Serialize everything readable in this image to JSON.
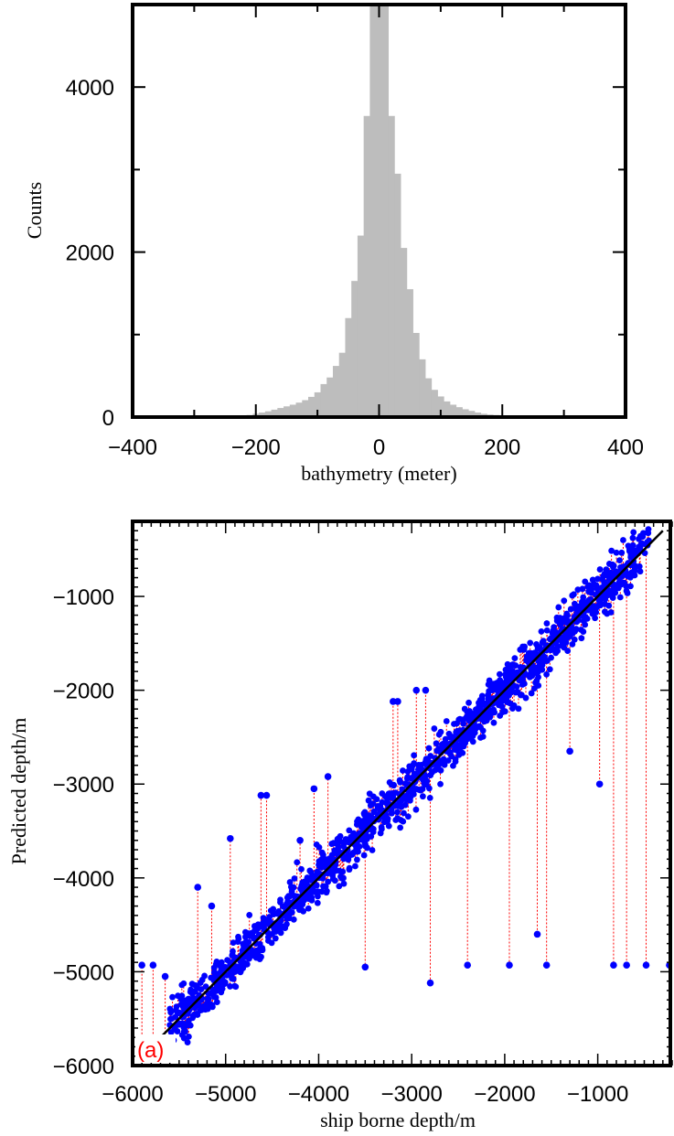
{
  "chart_data": [
    {
      "type": "bar",
      "subtype": "histogram",
      "xlabel": "bathymetry (meter)",
      "ylabel": "Counts",
      "xlim": [
        -400,
        400
      ],
      "ylim": [
        0,
        5000
      ],
      "xticks": [
        -400,
        -200,
        0,
        200,
        400
      ],
      "xtick_labels": [
        "−400",
        "−200",
        "0",
        "200",
        "400"
      ],
      "yticks": [
        0,
        2000,
        4000
      ],
      "ytick_labels": [
        "0",
        "2000",
        "4000"
      ],
      "bar_color": "#bdbdbd",
      "bin_width": 10,
      "bins": [
        {
          "x": -230,
          "value": 10
        },
        {
          "x": -220,
          "value": 15
        },
        {
          "x": -210,
          "value": 25
        },
        {
          "x": -200,
          "value": 40
        },
        {
          "x": -190,
          "value": 55
        },
        {
          "x": -180,
          "value": 70
        },
        {
          "x": -170,
          "value": 90
        },
        {
          "x": -160,
          "value": 110
        },
        {
          "x": -150,
          "value": 130
        },
        {
          "x": -140,
          "value": 150
        },
        {
          "x": -130,
          "value": 175
        },
        {
          "x": -120,
          "value": 205
        },
        {
          "x": -110,
          "value": 245
        },
        {
          "x": -100,
          "value": 300
        },
        {
          "x": -90,
          "value": 400
        },
        {
          "x": -80,
          "value": 480
        },
        {
          "x": -70,
          "value": 620
        },
        {
          "x": -60,
          "value": 780
        },
        {
          "x": -50,
          "value": 1200
        },
        {
          "x": -40,
          "value": 1650
        },
        {
          "x": -30,
          "value": 2200
        },
        {
          "x": -20,
          "value": 3650
        },
        {
          "x": -10,
          "value": 5000
        },
        {
          "x": 0,
          "value": 5000
        },
        {
          "x": 10,
          "value": 5000
        },
        {
          "x": 20,
          "value": 3650
        },
        {
          "x": 30,
          "value": 2950
        },
        {
          "x": 40,
          "value": 2050
        },
        {
          "x": 50,
          "value": 1550
        },
        {
          "x": 60,
          "value": 1020
        },
        {
          "x": 70,
          "value": 700
        },
        {
          "x": 80,
          "value": 470
        },
        {
          "x": 90,
          "value": 330
        },
        {
          "x": 100,
          "value": 250
        },
        {
          "x": 110,
          "value": 190
        },
        {
          "x": 120,
          "value": 150
        },
        {
          "x": 130,
          "value": 120
        },
        {
          "x": 140,
          "value": 95
        },
        {
          "x": 150,
          "value": 75
        },
        {
          "x": 160,
          "value": 55
        },
        {
          "x": 170,
          "value": 40
        },
        {
          "x": 180,
          "value": 30
        },
        {
          "x": 190,
          "value": 25
        },
        {
          "x": 200,
          "value": 20
        },
        {
          "x": 210,
          "value": 15
        },
        {
          "x": 220,
          "value": 12
        },
        {
          "x": 230,
          "value": 10
        },
        {
          "x": 240,
          "value": 8
        },
        {
          "x": 250,
          "value": 6
        },
        {
          "x": 260,
          "value": 5
        }
      ]
    },
    {
      "type": "scatter",
      "panel_label": "(a)",
      "xlabel": "ship borne depth/m",
      "ylabel": "Predicted depth/m",
      "xlim": [
        -6000,
        -200
      ],
      "ylim": [
        -6000,
        -200
      ],
      "xticks": [
        -6000,
        -5000,
        -4000,
        -3000,
        -2000,
        -1000
      ],
      "xtick_labels": [
        "−6000",
        "−5000",
        "−4000",
        "−3000",
        "−2000",
        "−1000"
      ],
      "yticks": [
        -6000,
        -5000,
        -4000,
        -3000,
        -2000,
        -1000
      ],
      "ytick_labels": [
        "−6000",
        "−5000",
        "−4000",
        "−3000",
        "−2000",
        "−1000"
      ],
      "point_color": "#0000ff",
      "residual_color": "#ff0000",
      "reference_line": {
        "from": [
          -5700,
          -5700
        ],
        "to": [
          -300,
          -300
        ],
        "color": "#000000"
      },
      "band": {
        "x_from": -5600,
        "x_to": -450,
        "spread": 180
      },
      "outliers": [
        {
          "x": -5900,
          "y": -4930
        },
        {
          "x": -5780,
          "y": -4930
        },
        {
          "x": -5650,
          "y": -5050
        },
        {
          "x": -5300,
          "y": -4100
        },
        {
          "x": -5150,
          "y": -4300
        },
        {
          "x": -4950,
          "y": -3580
        },
        {
          "x": -4620,
          "y": -3120
        },
        {
          "x": -4560,
          "y": -3120
        },
        {
          "x": -4200,
          "y": -3600
        },
        {
          "x": -4050,
          "y": -3050
        },
        {
          "x": -3900,
          "y": -2920
        },
        {
          "x": -3500,
          "y": -4950
        },
        {
          "x": -3200,
          "y": -2120
        },
        {
          "x": -3150,
          "y": -2120
        },
        {
          "x": -2950,
          "y": -2000
        },
        {
          "x": -2850,
          "y": -2000
        },
        {
          "x": -2800,
          "y": -5120
        },
        {
          "x": -2400,
          "y": -4930
        },
        {
          "x": -1950,
          "y": -4930
        },
        {
          "x": -1650,
          "y": -4600
        },
        {
          "x": -1550,
          "y": -4930
        },
        {
          "x": -1300,
          "y": -2650
        },
        {
          "x": -980,
          "y": -3000
        },
        {
          "x": -830,
          "y": -4930
        },
        {
          "x": -690,
          "y": -4930
        },
        {
          "x": -480,
          "y": -4930
        },
        {
          "x": -230,
          "y": -4930
        }
      ]
    }
  ]
}
